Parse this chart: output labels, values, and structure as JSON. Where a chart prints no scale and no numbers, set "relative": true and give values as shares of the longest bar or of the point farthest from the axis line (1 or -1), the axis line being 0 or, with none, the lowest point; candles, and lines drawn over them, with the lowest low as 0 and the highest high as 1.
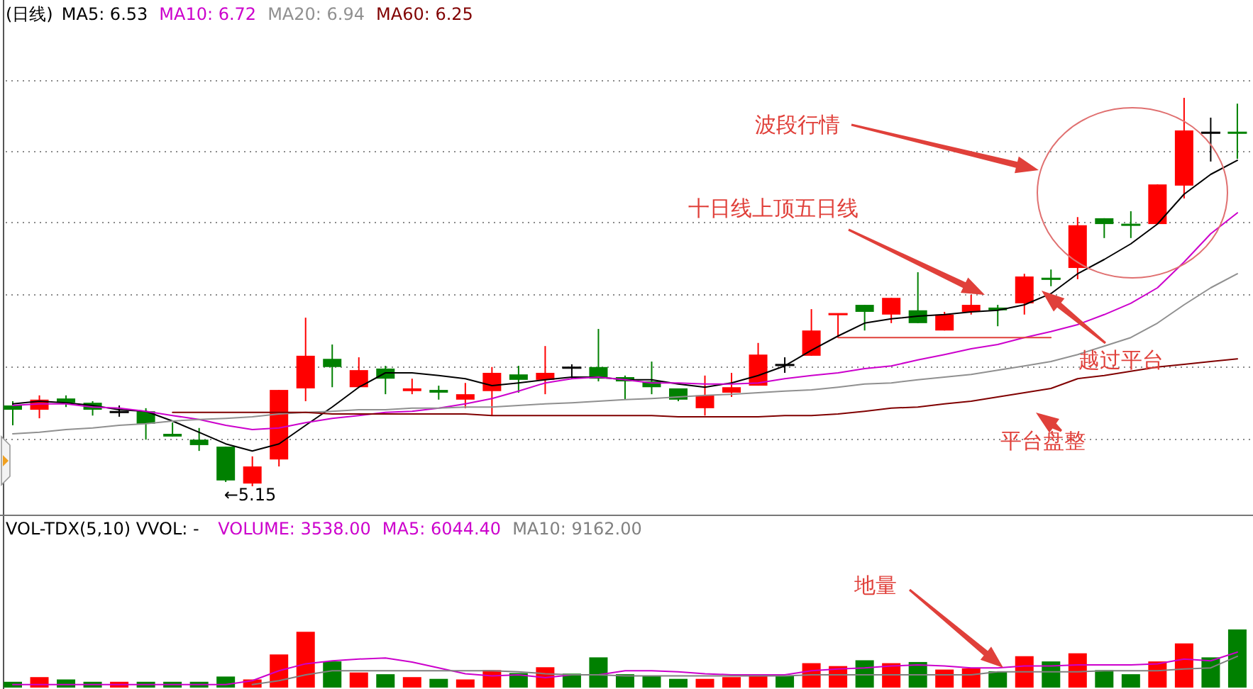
{
  "chart_data": [
    {
      "type": "candlestick",
      "title": "(日线)",
      "relative": true,
      "legend": "top left",
      "grid": true,
      "categories": [
        null,
        null,
        null,
        null,
        null,
        null,
        null,
        null,
        null,
        null,
        null,
        null,
        null,
        null,
        null,
        null,
        null,
        null,
        null,
        null,
        null,
        null,
        null,
        null,
        null,
        null,
        null,
        null,
        null,
        null,
        null,
        null,
        null,
        null,
        null,
        null,
        null,
        null,
        null,
        null,
        null,
        null,
        null,
        null,
        null,
        null,
        null
      ],
      "ohlc": [
        [
          0.208,
          0.219,
          0.157,
          0.197
        ],
        [
          0.197,
          0.234,
          0.175,
          0.223
        ],
        [
          0.226,
          0.234,
          0.204,
          0.215
        ],
        [
          0.215,
          0.219,
          0.182,
          0.197
        ],
        [
          0.193,
          0.208,
          0.179,
          0.193
        ],
        [
          0.193,
          0.201,
          0.12,
          0.161
        ],
        [
          0.135,
          0.164,
          0.128,
          0.128
        ],
        [
          0.12,
          0.15,
          0.091,
          0.106
        ],
        [
          0.102,
          0.102,
          0.011,
          0.015
        ],
        [
          0.007,
          0.077,
          0,
          0.051
        ],
        [
          0.069,
          0.248,
          0.051,
          0.248
        ],
        [
          0.252,
          0.434,
          0.219,
          0.336
        ],
        [
          0.328,
          0.365,
          0.255,
          0.307
        ],
        [
          0.255,
          0.332,
          0.255,
          0.299
        ],
        [
          0.303,
          0.31,
          0.237,
          0.277
        ],
        [
          0.245,
          0.277,
          0.237,
          0.252
        ],
        [
          0.248,
          0.259,
          0.223,
          0.241
        ],
        [
          0.223,
          0.266,
          0.201,
          0.237
        ],
        [
          0.245,
          0.307,
          0.182,
          0.292
        ],
        [
          0.288,
          0.31,
          0.241,
          0.274
        ],
        [
          0.274,
          0.361,
          0.237,
          0.292
        ],
        [
          0.307,
          0.314,
          0.277,
          0.307
        ],
        [
          0.307,
          0.405,
          0.27,
          0.277
        ],
        [
          0.281,
          0.285,
          0.223,
          0.27
        ],
        [
          0.27,
          0.321,
          0.237,
          0.255
        ],
        [
          0.252,
          0.252,
          0.219,
          0.223
        ],
        [
          0.201,
          0.285,
          0.182,
          0.234
        ],
        [
          0.241,
          0.292,
          0.23,
          0.255
        ],
        [
          0.259,
          0.369,
          0.259,
          0.339
        ],
        [
          0.314,
          0.332,
          0.292,
          0.314
        ],
        [
          0.336,
          0.456,
          0.336,
          0.401
        ],
        [
          0.445,
          0.445,
          0.383,
          0.445
        ],
        [
          0.467,
          0.467,
          0.401,
          0.449
        ],
        [
          0.442,
          0.485,
          0.42,
          0.485
        ],
        [
          0.453,
          0.551,
          0.42,
          0.42
        ],
        [
          0.401,
          0.449,
          0.401,
          0.442
        ],
        [
          0.449,
          0.493,
          0.442,
          0.467
        ],
        [
          0.46,
          0.467,
          0.412,
          0.453
        ],
        [
          0.471,
          0.547,
          0.442,
          0.54
        ],
        [
          0.536,
          0.558,
          0.515,
          0.536
        ],
        [
          0.562,
          0.693,
          0.533,
          0.672
        ],
        [
          0.69,
          0.69,
          0.639,
          0.675
        ],
        [
          0.675,
          0.708,
          0.639,
          0.675
        ],
        [
          0.675,
          0.777,
          0.675,
          0.777
        ],
        [
          0.774,
          1,
          0.741,
          0.916
        ],
        [
          0.912,
          0.949,
          0.836,
          0.912
        ],
        [
          0.912,
          0.985,
          0.843,
          0.912
        ]
      ],
      "colors": [
        "#008000",
        "#ff0000",
        "#008000",
        "#008000",
        "#000000",
        "#008000",
        "#008000",
        "#008000",
        "#008000",
        "#ff0000",
        "#ff0000",
        "#ff0000",
        "#008000",
        "#ff0000",
        "#008000",
        "#ff0000",
        "#008000",
        "#ff0000",
        "#ff0000",
        "#008000",
        "#ff0000",
        "#000000",
        "#008000",
        "#008000",
        "#008000",
        "#008000",
        "#ff0000",
        "#ff0000",
        "#ff0000",
        "#000000",
        "#ff0000",
        "#ff0000",
        "#008000",
        "#ff0000",
        "#008000",
        "#ff0000",
        "#ff0000",
        "#008000",
        "#ff0000",
        "#008000",
        "#ff0000",
        "#008000",
        "#008000",
        "#ff0000",
        "#ff0000",
        "#000000",
        "#008000"
      ],
      "series": [
        {
          "type": "line",
          "name": "MA5: 6.53",
          "color": "#000000",
          "values": [
            0.212,
            0.219,
            0.215,
            0.208,
            0.197,
            0.193,
            0.168,
            0.139,
            0.109,
            0.091,
            0.109,
            0.157,
            0.204,
            0.255,
            0.292,
            0.292,
            0.285,
            0.277,
            0.259,
            0.266,
            0.274,
            0.281,
            0.281,
            0.274,
            0.274,
            0.263,
            0.255,
            0.266,
            0.285,
            0.31,
            0.35,
            0.387,
            0.42,
            0.431,
            0.438,
            0.442,
            0.449,
            0.453,
            0.467,
            0.496,
            0.547,
            0.584,
            0.624,
            0.675,
            0.752,
            0.803,
            0.839
          ]
        },
        {
          "type": "line",
          "name": "MA10: 6.72",
          "color": "#cc00cc",
          "values": [
            0.208,
            0.212,
            0.212,
            0.204,
            0.201,
            0.193,
            0.182,
            0.172,
            0.157,
            0.146,
            0.15,
            0.164,
            0.175,
            0.182,
            0.19,
            0.193,
            0.201,
            0.212,
            0.226,
            0.245,
            0.266,
            0.277,
            0.281,
            0.274,
            0.266,
            0.266,
            0.263,
            0.263,
            0.266,
            0.277,
            0.285,
            0.292,
            0.303,
            0.31,
            0.325,
            0.339,
            0.354,
            0.365,
            0.383,
            0.398,
            0.416,
            0.442,
            0.471,
            0.511,
            0.577,
            0.65,
            0.704
          ]
        },
        {
          "type": "line",
          "name": "MA20: 6.94",
          "color": "#909090",
          "values": [
            0.135,
            0.139,
            0.146,
            0.15,
            0.157,
            0.161,
            0.168,
            0.172,
            0.175,
            0.179,
            0.186,
            0.19,
            0.193,
            0.197,
            0.197,
            0.201,
            0.201,
            0.204,
            0.204,
            0.208,
            0.212,
            0.215,
            0.219,
            0.223,
            0.226,
            0.23,
            0.234,
            0.237,
            0.241,
            0.245,
            0.248,
            0.255,
            0.263,
            0.266,
            0.274,
            0.281,
            0.288,
            0.299,
            0.31,
            0.321,
            0.339,
            0.361,
            0.383,
            0.42,
            0.467,
            0.511,
            0.547
          ]
        },
        {
          "type": "line",
          "color": "#e0403a",
          "values": [
            null,
            null,
            null,
            null,
            null,
            null,
            null,
            null,
            null,
            null,
            null,
            null,
            null,
            null,
            null,
            null,
            null,
            null,
            null,
            null,
            null,
            null,
            null,
            null,
            null,
            null,
            null,
            null,
            null,
            null,
            null,
            0.383,
            0.383,
            0.383,
            0.383,
            0.383,
            0.383,
            0.383,
            0.383,
            0.383,
            null,
            null,
            null,
            null,
            null,
            null,
            null
          ]
        },
        {
          "type": "line",
          "name": "MA60: 6.25",
          "color": "#800000",
          "values": [
            null,
            null,
            null,
            null,
            null,
            null,
            0.19,
            0.19,
            0.19,
            0.19,
            0.19,
            0.19,
            0.186,
            0.186,
            0.186,
            0.186,
            0.186,
            0.186,
            0.182,
            0.182,
            0.182,
            0.182,
            0.182,
            0.182,
            0.182,
            0.179,
            0.179,
            0.179,
            0.179,
            0.182,
            0.182,
            0.186,
            0.193,
            0.201,
            0.204,
            0.212,
            0.219,
            0.23,
            0.241,
            0.252,
            0.277,
            0.285,
            0.296,
            0.307,
            0.314,
            0.321,
            0.328
          ]
        }
      ],
      "annotations": [
        "波段行情",
        "十日线上顶五日线",
        "越过平台",
        "平台盘整",
        "←5.15"
      ]
    },
    {
      "type": "bar",
      "title": "VOL-TDX(5,10) VVOL: -",
      "subtitle": "VOLUME: 3538.00",
      "relative": true,
      "legend": "top left",
      "categories": [
        null,
        null,
        null,
        null,
        null,
        null,
        null,
        null,
        null,
        null,
        null,
        null,
        null,
        null,
        null,
        null,
        null,
        null,
        null,
        null,
        null,
        null,
        null,
        null,
        null,
        null,
        null,
        null,
        null,
        null,
        null,
        null,
        null,
        null,
        null,
        null,
        null,
        null,
        null,
        null,
        null,
        null,
        null,
        null,
        null,
        null,
        null
      ],
      "series": [
        {
          "type": "bar",
          "colors": [
            "#008000",
            "#ff0000",
            "#008000",
            "#008000",
            "#ff0000",
            "#008000",
            "#008000",
            "#008000",
            "#008000",
            "#ff0000",
            "#ff0000",
            "#ff0000",
            "#008000",
            "#ff0000",
            "#008000",
            "#ff0000",
            "#008000",
            "#ff0000",
            "#ff0000",
            "#008000",
            "#ff0000",
            "#008000",
            "#008000",
            "#008000",
            "#008000",
            "#008000",
            "#ff0000",
            "#ff0000",
            "#ff0000",
            "#008000",
            "#ff0000",
            "#ff0000",
            "#008000",
            "#ff0000",
            "#008000",
            "#ff0000",
            "#ff0000",
            "#008000",
            "#ff0000",
            "#008000",
            "#ff0000",
            "#008000",
            "#008000",
            "#ff0000",
            "#ff0000",
            "#008000",
            "#008000"
          ],
          "values": [
            0.1,
            0.18,
            0.14,
            0.1,
            0.1,
            0.1,
            0.1,
            0.1,
            0.19,
            0.14,
            0.57,
            0.96,
            0.45,
            0.26,
            0.23,
            0.18,
            0.15,
            0.14,
            0.3,
            0.25,
            0.35,
            0.24,
            0.52,
            0.23,
            0.2,
            0.15,
            0.15,
            0.18,
            0.23,
            0.2,
            0.42,
            0.37,
            0.47,
            0.42,
            0.44,
            0.31,
            0.33,
            0.28,
            0.54,
            0.45,
            0.59,
            0.3,
            0.23,
            0.45,
            0.76,
            0.52,
            1
          ]
        },
        {
          "type": "line",
          "name": "MA5: 6044.40",
          "color": "#cc00cc",
          "values": [
            0.05,
            0.05,
            0.05,
            0.05,
            0.05,
            0.05,
            0.05,
            0.05,
            0.05,
            0.12,
            0.29,
            0.41,
            0.46,
            0.49,
            0.51,
            0.44,
            0.34,
            0.24,
            0.2,
            0.22,
            0.17,
            0.22,
            0.22,
            0.29,
            0.29,
            0.27,
            0.24,
            0.22,
            0.22,
            0.22,
            0.29,
            0.32,
            0.34,
            0.37,
            0.39,
            0.37,
            0.34,
            0.34,
            0.37,
            0.37,
            0.39,
            0.39,
            0.39,
            0.41,
            0.49,
            0.46,
            0.61
          ]
        },
        {
          "type": "line",
          "name": "MA10: 9162.00",
          "color": "#808080",
          "values": [
            null,
            null,
            null,
            null,
            null,
            null,
            null,
            null,
            null,
            0.05,
            0.12,
            0.22,
            0.29,
            0.29,
            0.29,
            0.29,
            0.29,
            0.29,
            0.29,
            0.27,
            0.24,
            0.22,
            0.22,
            0.2,
            0.2,
            0.2,
            0.2,
            0.2,
            0.2,
            0.2,
            0.22,
            0.22,
            0.22,
            0.22,
            0.22,
            0.22,
            0.22,
            0.27,
            0.27,
            0.27,
            0.27,
            0.29,
            0.29,
            0.29,
            0.32,
            0.34,
            0.54
          ]
        }
      ],
      "annotations": [
        "地量"
      ]
    }
  ]
}
